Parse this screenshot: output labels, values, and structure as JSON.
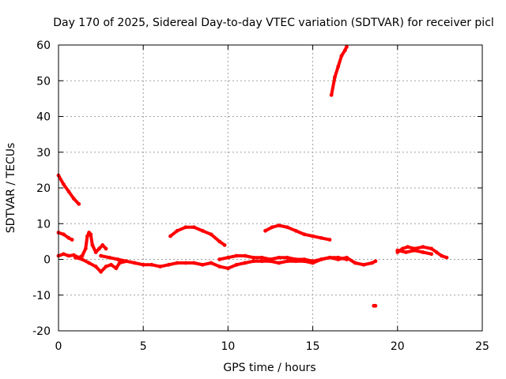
{
  "chart_data": {
    "type": "scatter",
    "title": "Day 170 of 2025, Sidereal Day-to-day VTEC variation (SDTVAR) for receiver picl",
    "xlabel": "GPS time / hours",
    "ylabel": "SDTVAR / TECUs",
    "xlim": [
      0,
      25
    ],
    "ylim": [
      -20,
      60
    ],
    "xticks": [
      0,
      5,
      10,
      15,
      20,
      25
    ],
    "yticks": [
      -20,
      -10,
      0,
      10,
      20,
      30,
      40,
      50,
      60
    ],
    "grid": true,
    "series_color": "#ff0000",
    "series": [
      {
        "name": "trace-1",
        "x": [
          0.0,
          0.3,
          0.6,
          0.9,
          1.2
        ],
        "y": [
          23.5,
          21.0,
          19.0,
          17.0,
          15.5
        ]
      },
      {
        "name": "trace-2",
        "x": [
          0.0,
          0.3,
          0.6,
          0.8
        ],
        "y": [
          7.5,
          7.0,
          6.0,
          5.5
        ]
      },
      {
        "name": "trace-3",
        "x": [
          0.0,
          0.3,
          0.6,
          0.9,
          1.2,
          1.4,
          1.6,
          1.7,
          1.8,
          1.9,
          2.0,
          2.2,
          2.4,
          2.6,
          2.8
        ],
        "y": [
          1.0,
          1.5,
          1.0,
          1.2,
          0.5,
          1.0,
          3.0,
          6.5,
          7.5,
          7.0,
          4.0,
          2.0,
          3.0,
          4.0,
          3.0
        ]
      },
      {
        "name": "trace-4",
        "x": [
          1.0,
          1.4,
          1.8,
          2.2,
          2.5,
          2.8,
          3.1,
          3.4,
          3.6,
          4.0
        ],
        "y": [
          0.5,
          0.0,
          -1.0,
          -2.0,
          -3.5,
          -2.0,
          -1.5,
          -2.5,
          -1.0,
          -0.5
        ]
      },
      {
        "name": "trace-5",
        "x": [
          2.5,
          3.0,
          3.5,
          4.0,
          4.5,
          5.0,
          5.5,
          6.0,
          6.5,
          7.0,
          7.5,
          8.0,
          8.5,
          9.0,
          9.5,
          10.0,
          10.5,
          11.0,
          11.5,
          12.0,
          12.5,
          13.0,
          13.5,
          14.0,
          14.5,
          15.0,
          15.5,
          16.0,
          16.5,
          17.0,
          17.5,
          18.0,
          18.5,
          18.7
        ],
        "y": [
          1.0,
          0.5,
          0.0,
          -0.5,
          -1.0,
          -1.5,
          -1.5,
          -2.0,
          -1.5,
          -1.0,
          -1.0,
          -1.0,
          -1.5,
          -1.0,
          -2.0,
          -2.5,
          -1.5,
          -1.0,
          -0.5,
          -0.5,
          -0.5,
          -1.0,
          -0.5,
          -0.5,
          -0.5,
          -1.0,
          0.0,
          0.5,
          0.0,
          0.5,
          -1.0,
          -1.5,
          -1.0,
          -0.5
        ]
      },
      {
        "name": "trace-6",
        "x": [
          9.5,
          10.0,
          10.5,
          11.0,
          11.5,
          12.0,
          12.5,
          13.0,
          13.5,
          14.0,
          14.5,
          15.0,
          15.5,
          16.0,
          16.5,
          17.0
        ],
        "y": [
          0.0,
          0.5,
          1.0,
          1.0,
          0.5,
          0.5,
          0.0,
          0.5,
          0.5,
          0.0,
          0.0,
          -0.5,
          0.0,
          0.5,
          0.5,
          0.0
        ]
      },
      {
        "name": "trace-7",
        "x": [
          6.6,
          7.0,
          7.5,
          8.0,
          8.5,
          9.0,
          9.5,
          9.8
        ],
        "y": [
          6.5,
          8.0,
          9.0,
          9.0,
          8.0,
          7.0,
          5.0,
          4.0
        ]
      },
      {
        "name": "trace-8",
        "x": [
          12.2,
          12.6,
          13.0,
          13.5,
          14.0,
          14.5,
          15.0,
          15.5,
          16.0
        ],
        "y": [
          8.0,
          9.0,
          9.5,
          9.0,
          8.0,
          7.0,
          6.5,
          6.0,
          5.5
        ]
      },
      {
        "name": "trace-9",
        "x": [
          16.1,
          16.3,
          16.5,
          16.7,
          16.9,
          17.0
        ],
        "y": [
          46.0,
          51.0,
          54.0,
          57.0,
          58.5,
          59.5
        ]
      },
      {
        "name": "trace-10",
        "x": [
          18.6,
          18.7
        ],
        "y": [
          -13.0,
          -13.0
        ]
      },
      {
        "name": "trace-11",
        "x": [
          20.0,
          20.3,
          20.6,
          21.0,
          21.5,
          22.0,
          22.3,
          22.6,
          22.9
        ],
        "y": [
          2.0,
          3.0,
          3.5,
          3.0,
          3.5,
          3.0,
          2.0,
          1.0,
          0.5
        ]
      },
      {
        "name": "trace-12",
        "x": [
          20.0,
          20.5,
          21.0,
          21.5,
          22.0
        ],
        "y": [
          2.5,
          2.0,
          2.5,
          2.0,
          1.5
        ]
      }
    ]
  }
}
